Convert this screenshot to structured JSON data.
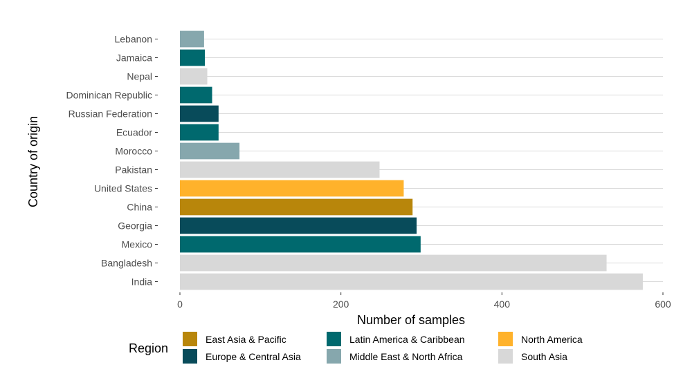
{
  "chart_data": {
    "type": "bar",
    "orientation": "horizontal",
    "xlabel": "Number of samples",
    "ylabel": "Country of origin",
    "xlim": [
      0,
      600
    ],
    "xticks": [
      0,
      200,
      400,
      600
    ],
    "grid": true,
    "legend_title": "Region",
    "legend_position": "bottom",
    "bars": [
      {
        "country": "Lebanon",
        "value": 30,
        "region": "Middle East & North Africa"
      },
      {
        "country": "Jamaica",
        "value": 31,
        "region": "Latin America & Caribbean"
      },
      {
        "country": "Nepal",
        "value": 34,
        "region": "South Asia"
      },
      {
        "country": "Dominican Republic",
        "value": 40,
        "region": "Latin America & Caribbean"
      },
      {
        "country": "Russian Federation",
        "value": 48,
        "region": "Europe & Central Asia"
      },
      {
        "country": "Ecuador",
        "value": 48,
        "region": "Latin America & Caribbean"
      },
      {
        "country": "Morocco",
        "value": 74,
        "region": "Middle East & North Africa"
      },
      {
        "country": "Pakistan",
        "value": 248,
        "region": "South Asia"
      },
      {
        "country": "United States",
        "value": 278,
        "region": "North America"
      },
      {
        "country": "China",
        "value": 289,
        "region": "East Asia & Pacific"
      },
      {
        "country": "Georgia",
        "value": 294,
        "region": "Europe & Central Asia"
      },
      {
        "country": "Mexico",
        "value": 299,
        "region": "Latin America & Caribbean"
      },
      {
        "country": "Bangladesh",
        "value": 530,
        "region": "South Asia"
      },
      {
        "country": "India",
        "value": 575,
        "region": "South Asia"
      }
    ],
    "legend": [
      {
        "name": "East Asia & Pacific",
        "color": "#b8860b"
      },
      {
        "name": "Latin America & Caribbean",
        "color": "#00696e"
      },
      {
        "name": "North America",
        "color": "#ffb22b"
      },
      {
        "name": "Europe & Central Asia",
        "color": "#084b5a"
      },
      {
        "name": "Middle East & North Africa",
        "color": "#86a7ad"
      },
      {
        "name": "South Asia",
        "color": "#d8d8d8"
      }
    ]
  }
}
